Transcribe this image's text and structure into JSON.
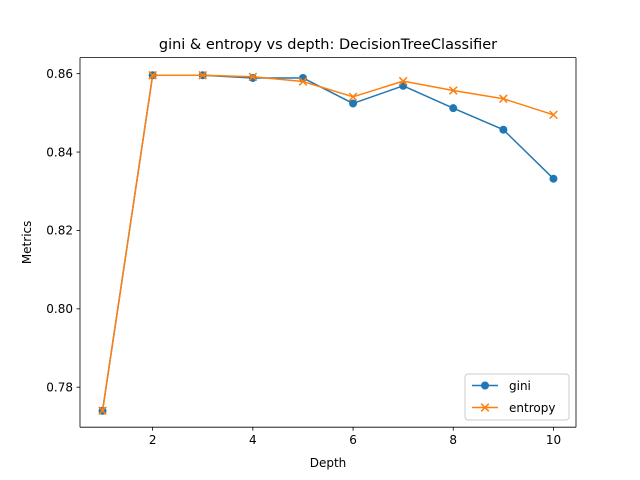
{
  "chart_data": {
    "type": "line",
    "title": "gini & entropy vs depth: DecisionTreeClassifier",
    "xlabel": "Depth",
    "ylabel": "Metrics",
    "xlim": [
      0.55,
      10.45
    ],
    "ylim": [
      0.7698,
      0.8641
    ],
    "xticks": [
      2,
      4,
      6,
      8,
      10
    ],
    "yticks": [
      0.78,
      0.8,
      0.82,
      0.84,
      0.86
    ],
    "ytick_labels": [
      "0.78",
      "0.80",
      "0.82",
      "0.84",
      "0.86"
    ],
    "grid": false,
    "legend_position": "lower-right",
    "x": [
      1,
      2,
      3,
      4,
      5,
      6,
      7,
      8,
      9,
      10
    ],
    "series": [
      {
        "name": "gini",
        "color": "#1f77b4",
        "marker": "circle",
        "values": [
          0.774,
          0.8596,
          0.8596,
          0.8589,
          0.8589,
          0.8524,
          0.8569,
          0.8512,
          0.8457,
          0.8332
        ]
      },
      {
        "name": "entropy",
        "color": "#ff7f0e",
        "marker": "x",
        "values": [
          0.774,
          0.8596,
          0.8596,
          0.8592,
          0.858,
          0.8541,
          0.8581,
          0.8557,
          0.8536,
          0.8495
        ]
      }
    ]
  }
}
